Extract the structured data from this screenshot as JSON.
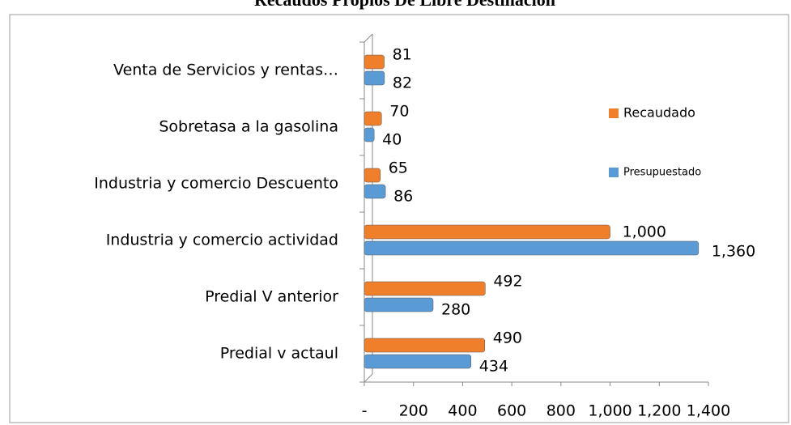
{
  "chart_data": {
    "type": "bar",
    "orientation": "horizontal",
    "title": "Recaudos Propios De Libre Destinación",
    "categories": [
      "Venta de Servicios y rentas…",
      "Sobretasa a la gasolina",
      "Industria y comercio Descuento",
      "Industria y comercio actividad",
      "Predial V anterior",
      "Predial v actaul"
    ],
    "series": [
      {
        "name": "Recaudado",
        "color": "#f07f2c",
        "values": [
          81,
          70,
          65,
          1000,
          492,
          490
        ],
        "value_labels": [
          "81",
          "70",
          "65",
          "1,000",
          "492",
          "490"
        ]
      },
      {
        "name": "Presupuestado",
        "color": "#5b9bd5",
        "values": [
          82,
          40,
          86,
          1360,
          280,
          434
        ],
        "value_labels": [
          "82",
          "40",
          "86",
          "1,360",
          "280",
          "434"
        ]
      }
    ],
    "xlim": [
      0,
      1400
    ],
    "xticks": [
      {
        "value": 0,
        "label": "-"
      },
      200,
      400,
      600,
      800,
      {
        "value": 1000,
        "label": "1,000"
      },
      {
        "value": 1200,
        "label": "1,200"
      },
      {
        "value": 1400,
        "label": "1,400"
      }
    ],
    "legend": "right"
  }
}
